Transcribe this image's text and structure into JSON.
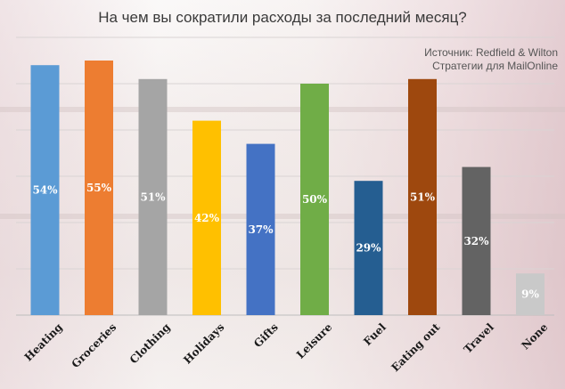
{
  "chart_data": {
    "type": "bar",
    "title": "На чем вы сократили расходы за последний месяц?",
    "source_lines": [
      "Источник: Redfield & Wilton",
      "Стратегии для MailOnline"
    ],
    "categories": [
      "Heating",
      "Groceries",
      "Clothing",
      "Holidays",
      "Gifts",
      "Leisure",
      "Fuel",
      "Eating out",
      "Travel",
      "None"
    ],
    "values": [
      54,
      55,
      51,
      42,
      37,
      50,
      29,
      51,
      32,
      9
    ],
    "value_labels": [
      "54%",
      "55%",
      "51%",
      "42%",
      "37%",
      "50%",
      "29%",
      "51%",
      "32%",
      "9%"
    ],
    "colors": [
      "#5b9bd5",
      "#ed7d31",
      "#a5a5a5",
      "#ffc000",
      "#4472c4",
      "#70ad47",
      "#255e91",
      "#9e480e",
      "#636363",
      "#c9c9c9"
    ],
    "ylim": [
      0,
      60
    ],
    "grid": true,
    "legend": "none"
  }
}
